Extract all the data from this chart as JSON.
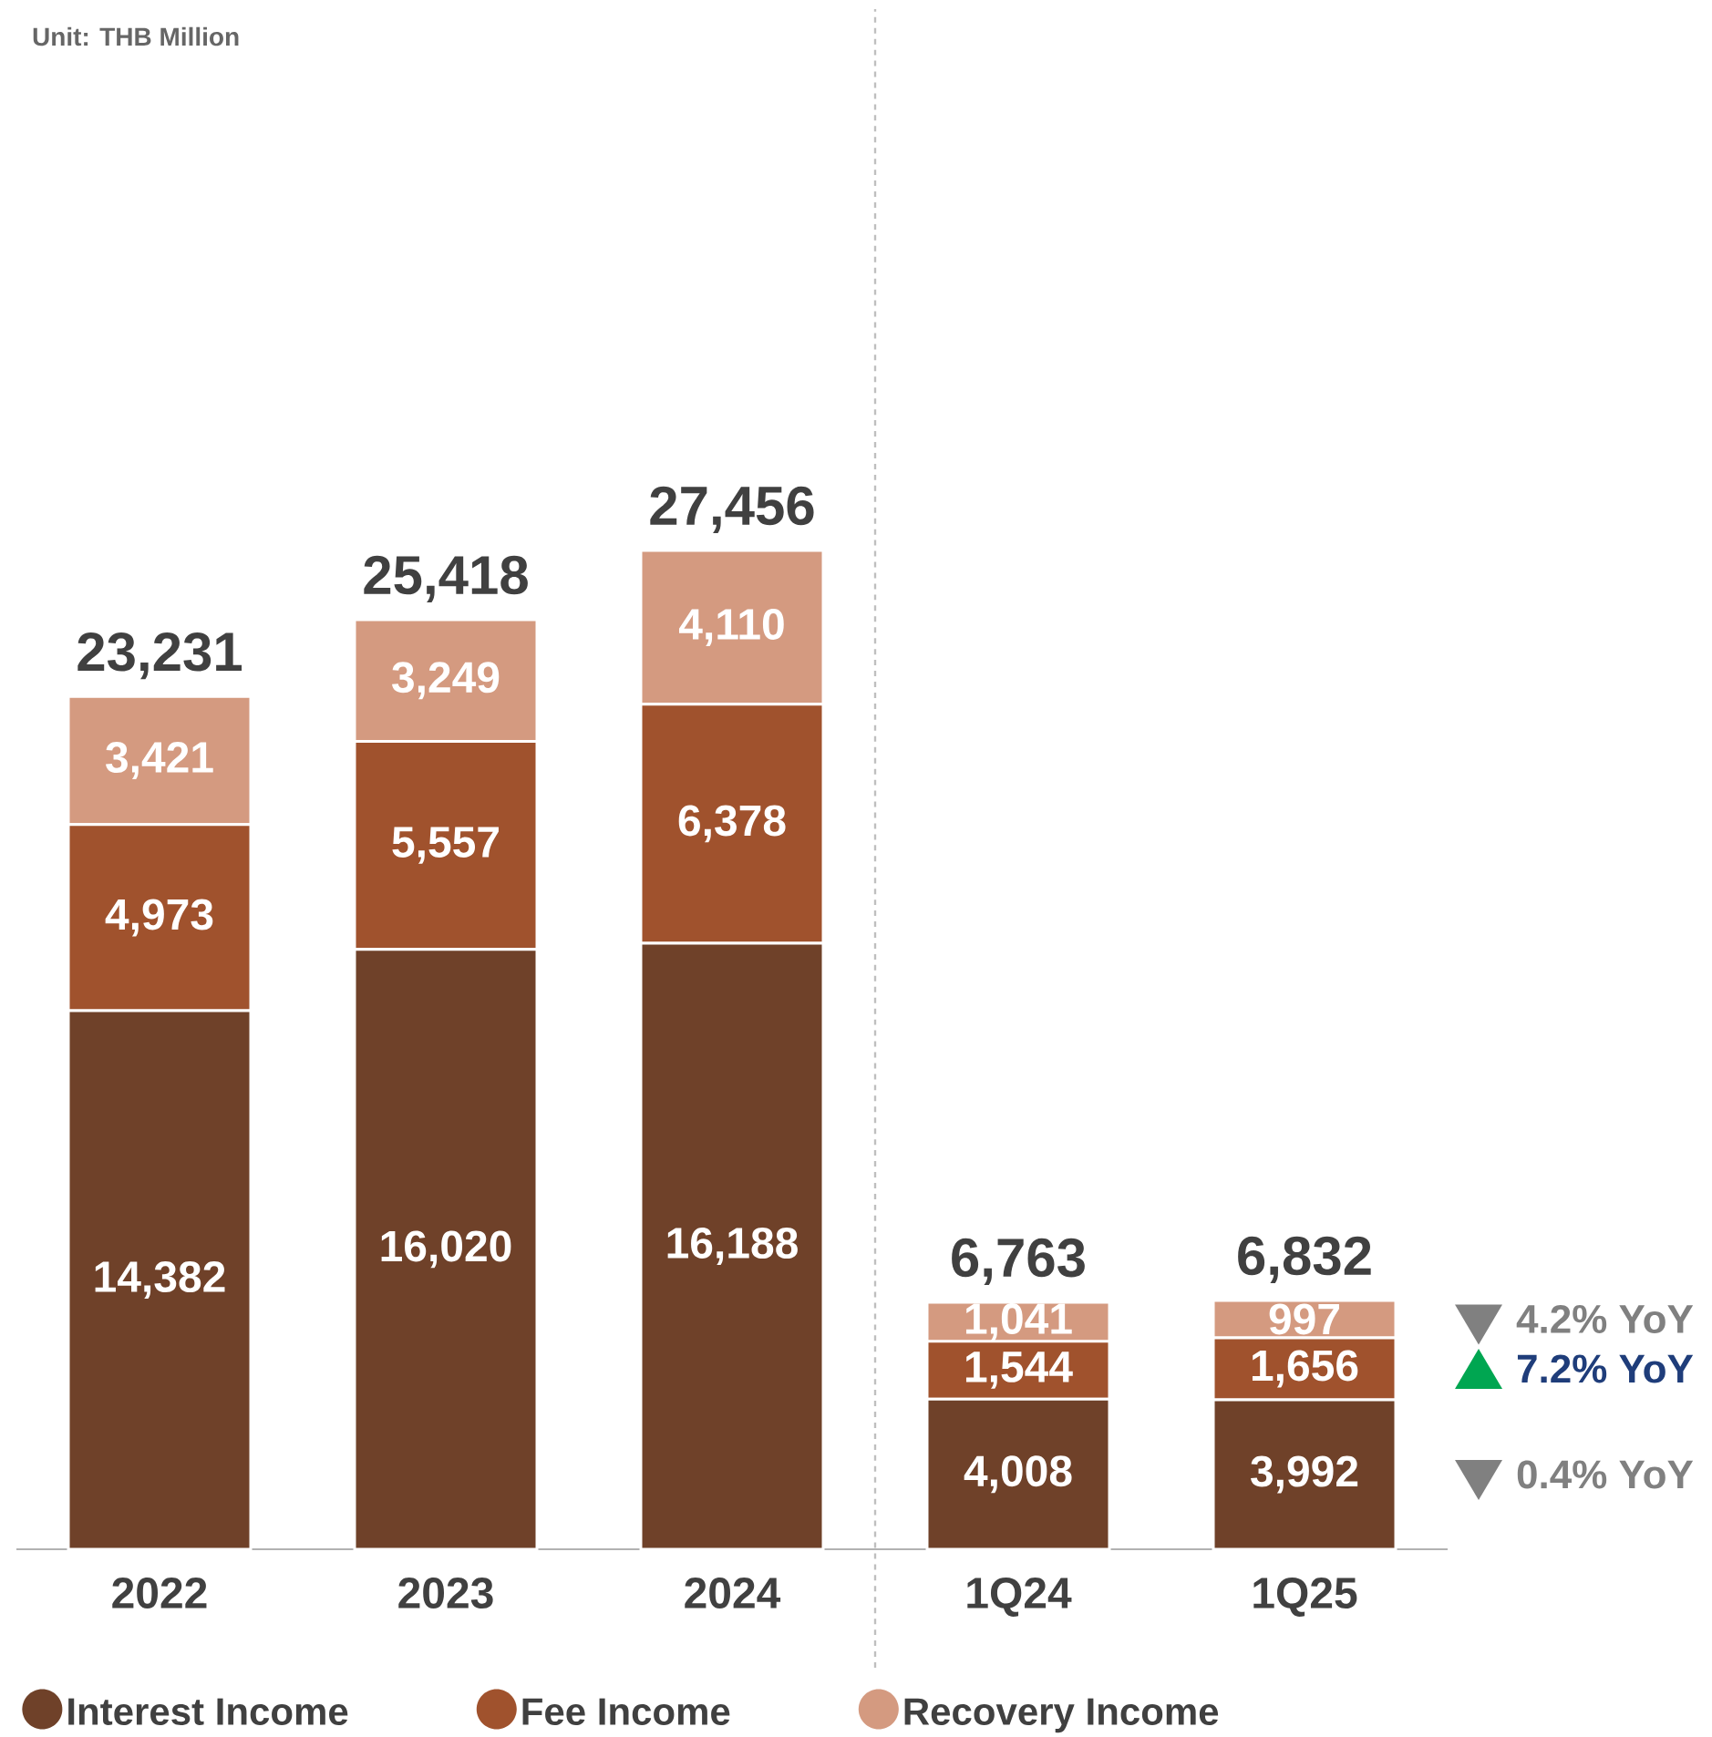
{
  "chart_data": {
    "type": "bar",
    "stacked": true,
    "categories": [
      "2022",
      "2023",
      "2024",
      "1Q24",
      "1Q25"
    ],
    "series": [
      {
        "name": "Interest Income",
        "color": "#6f4129",
        "values": [
          14382,
          16020,
          16188,
          4008,
          3992
        ],
        "value_labels": [
          "14,382",
          "16,020",
          "16,188",
          "4,008",
          "3,992"
        ]
      },
      {
        "name": "Fee Income",
        "color": "#a0522d",
        "values": [
          4973,
          5557,
          6378,
          1544,
          1656
        ],
        "value_labels": [
          "4,973",
          "5,557",
          "6,378",
          "1,544",
          "1,656"
        ]
      },
      {
        "name": "Recovery Income",
        "color": "#d49a80",
        "values": [
          3421,
          3249,
          4110,
          1041,
          997
        ],
        "value_labels": [
          "3,421",
          "3,249",
          "4,110",
          "1,041",
          "997"
        ]
      }
    ],
    "legend": "bottom",
    "annotations": [
      "Unit: THB Million",
      "4.2% YoY",
      "7.2% YoY",
      "0.4% YoY",
      "23,231",
      "25,418",
      "27,456",
      "6,763",
      "6,832"
    ]
  }
}
